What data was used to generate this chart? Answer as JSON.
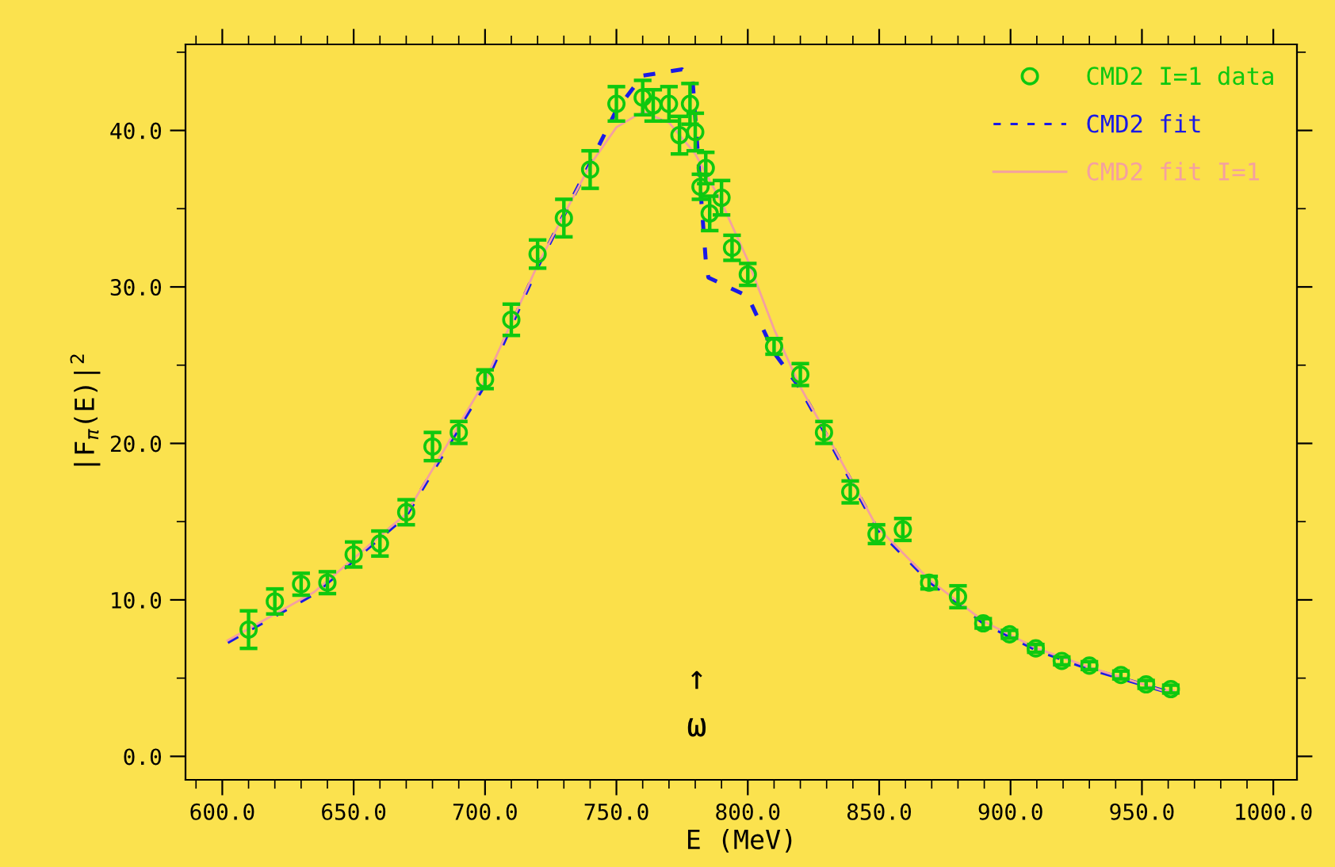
{
  "chart_data": {
    "type": "scatter",
    "xlabel": "E (MeV)",
    "ylabel": "|F$_{π}$(E)|$^{2}$",
    "xlim": [
      586,
      1009
    ],
    "ylim": [
      -1.5,
      45.5
    ],
    "xticks": [
      {
        "value": 600,
        "label": "600.0"
      },
      {
        "value": 650,
        "label": "650.0"
      },
      {
        "value": 700,
        "label": "700.0"
      },
      {
        "value": 750,
        "label": "750.0"
      },
      {
        "value": 800,
        "label": "800.0"
      },
      {
        "value": 850,
        "label": "850.0"
      },
      {
        "value": 900,
        "label": "900.0"
      },
      {
        "value": 950,
        "label": "950.0"
      },
      {
        "value": 1000,
        "label": "1000.0"
      }
    ],
    "yticks": [
      {
        "value": 0,
        "label": "0.0"
      },
      {
        "value": 10,
        "label": "10.0"
      },
      {
        "value": 20,
        "label": "20.0"
      },
      {
        "value": 30,
        "label": "30.0"
      },
      {
        "value": 40,
        "label": "40.0"
      }
    ],
    "grid": false,
    "legend": "top right",
    "annotations": [
      "↑\nω"
    ],
    "series": [
      {
        "name": "CMD2 I=1 data",
        "marker": "circle",
        "color": "#0fc80f",
        "x": [
          610,
          620,
          630,
          640,
          650,
          660,
          670,
          680,
          690,
          700,
          710,
          720,
          730,
          740,
          750,
          760,
          764,
          770,
          774,
          778,
          780,
          782,
          784,
          785.5,
          790,
          794,
          800,
          810,
          820,
          829,
          839,
          849,
          859,
          869,
          880,
          889.6,
          899.6,
          909.6,
          919.5,
          930,
          942,
          951.6,
          961
        ],
        "values": [
          8.1,
          9.9,
          11.0,
          11.1,
          12.9,
          13.6,
          15.6,
          19.8,
          20.7,
          24.1,
          27.9,
          32.1,
          34.4,
          37.5,
          41.7,
          42.1,
          41.6,
          41.7,
          39.7,
          41.7,
          39.9,
          36.4,
          37.6,
          34.7,
          35.7,
          32.5,
          30.8,
          26.2,
          24.4,
          20.7,
          16.9,
          14.2,
          14.5,
          11.1,
          10.2,
          8.5,
          7.8,
          6.9,
          6.1,
          5.8,
          5.2,
          4.6,
          4.3
        ],
        "errors": [
          1.2,
          0.8,
          0.7,
          0.7,
          0.8,
          0.8,
          0.8,
          0.9,
          0.7,
          0.6,
          1.0,
          0.9,
          1.2,
          1.2,
          1.1,
          1.1,
          1.0,
          1.1,
          1.2,
          1.3,
          1.2,
          0.8,
          1.0,
          1.1,
          1.1,
          0.8,
          0.7,
          0.5,
          0.7,
          0.7,
          0.7,
          0.6,
          0.7,
          0.4,
          0.7,
          0.3,
          0.25,
          0.25,
          0.25,
          0.25,
          0.25,
          0.25,
          0.25
        ]
      },
      {
        "name": "CMD2 fit",
        "type": "line",
        "line_style": "dashed",
        "color": "#1a1ae6",
        "x": [
          602,
          635,
          670,
          700,
          720,
          740,
          750,
          760,
          775,
          779,
          781,
          784,
          785,
          790,
          800,
          810,
          820,
          829,
          849,
          869,
          890,
          910,
          930,
          958,
          962
        ],
        "values": [
          7.3,
          10.4,
          15.4,
          23.8,
          31.3,
          37.9,
          41.3,
          43.5,
          43.9,
          43.2,
          38.5,
          31.7,
          30.6,
          30.2,
          29.4,
          25.8,
          23.5,
          20.8,
          14.6,
          11.2,
          8.5,
          6.8,
          5.6,
          4.2,
          4.2
        ]
      },
      {
        "name": "CMD2 fit I=1",
        "type": "line",
        "line_style": "solid",
        "color": "#f4a0a0",
        "x": [
          602,
          635,
          670,
          700,
          720,
          740,
          750,
          760,
          770,
          780,
          790,
          800,
          810,
          820,
          829,
          849,
          869,
          890,
          910,
          930,
          958,
          962
        ],
        "values": [
          7.4,
          10.5,
          15.5,
          24.0,
          31.4,
          37.8,
          40.2,
          41.2,
          40.5,
          38.5,
          35.4,
          31.7,
          27.3,
          23.6,
          20.9,
          14.7,
          11.3,
          8.6,
          6.9,
          5.7,
          4.2,
          4.2
        ]
      }
    ]
  }
}
